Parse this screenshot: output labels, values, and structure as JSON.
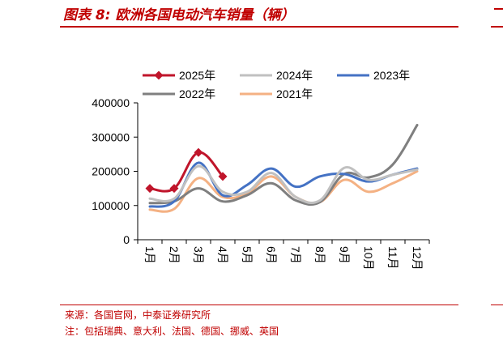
{
  "header": {
    "title": "图表 8:  欧洲各国电动汽车销量（辆）"
  },
  "footer": {
    "source": "来源：各国官网，中泰证券研究所",
    "note": "注：包括瑞典、意大利、法国、德国、挪威、英国"
  },
  "colors": {
    "accent": "#c00000"
  },
  "chart_data": {
    "type": "line",
    "categories": [
      "1月",
      "2月",
      "3月",
      "4月",
      "5月",
      "6月",
      "7月",
      "8月",
      "9月",
      "10月",
      "11月",
      "12月"
    ],
    "ylim": [
      0,
      400000
    ],
    "yticks": [
      "0",
      "100000",
      "200000",
      "300000",
      "400000"
    ],
    "legend_position": "top",
    "grid": false,
    "series": [
      {
        "name": "2025年",
        "color": "#c0152b",
        "marker": "diamond",
        "values": [
          150000,
          150000,
          255000,
          185000,
          null,
          null,
          null,
          null,
          null,
          null,
          null,
          null
        ]
      },
      {
        "name": "2024年",
        "color": "#c0c0c0",
        "values": [
          120000,
          120000,
          215000,
          140000,
          140000,
          195000,
          125000,
          115000,
          210000,
          175000,
          190000,
          205000
        ]
      },
      {
        "name": "2023年",
        "color": "#4472c4",
        "values": [
          97000,
          112000,
          225000,
          130000,
          160000,
          208000,
          155000,
          185000,
          192000,
          170000,
          190000,
          208000
        ]
      },
      {
        "name": "2022年",
        "color": "#7f7f7f",
        "values": [
          107000,
          112000,
          150000,
          112000,
          130000,
          165000,
          115000,
          110000,
          192000,
          182000,
          220000,
          335000
        ]
      },
      {
        "name": "2021年",
        "color": "#f4b183",
        "values": [
          88000,
          90000,
          180000,
          125000,
          135000,
          185000,
          125000,
          110000,
          175000,
          140000,
          165000,
          200000
        ]
      }
    ]
  }
}
